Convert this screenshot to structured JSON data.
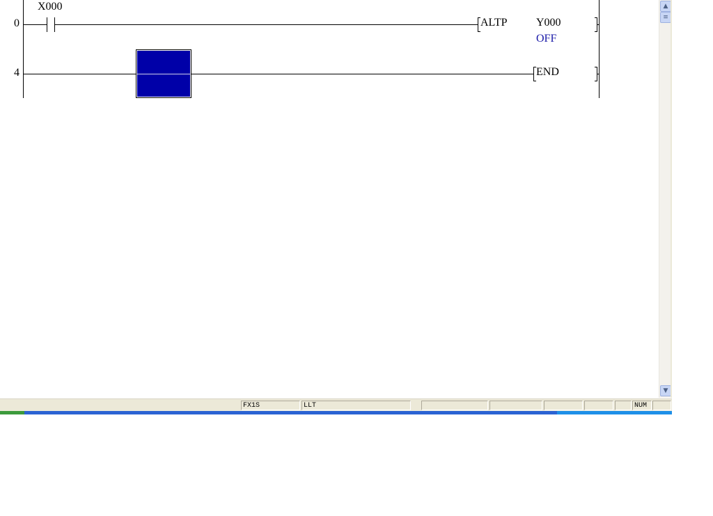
{
  "ladder": {
    "rungs": [
      {
        "step": "0",
        "contact": "X000",
        "instruction": "ALTP",
        "operand": "Y000",
        "operand_state": "OFF"
      },
      {
        "step": "4",
        "instruction": "END"
      }
    ],
    "cursor_color": "#0000a8",
    "state_color": "#1a1aa8"
  },
  "status_bar": {
    "panels": [
      "",
      "FX1S",
      "LLT",
      "",
      "",
      "",
      "",
      "",
      "NUM",
      ""
    ]
  },
  "scrollbar": {
    "up_icon": "chevron-up-icon",
    "down_icon": "chevron-down-icon"
  }
}
